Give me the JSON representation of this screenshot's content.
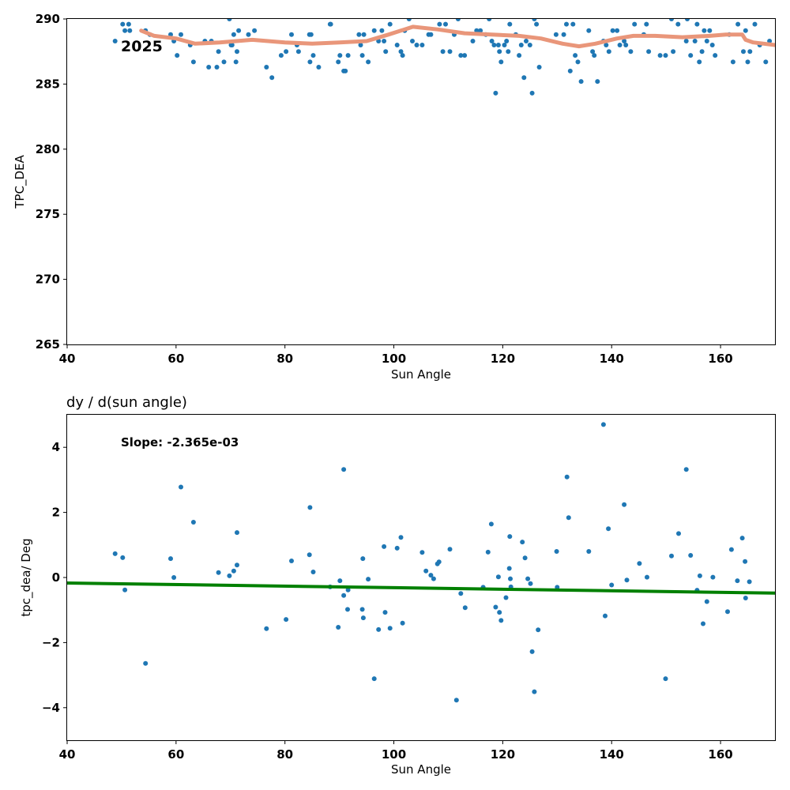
{
  "colors": {
    "points": "#1f77b4",
    "trend_line": "#e9967a",
    "fit_line": "#008000",
    "axes": "#000000"
  },
  "chart_data": [
    {
      "type": "scatter",
      "title": "",
      "annotation": "2025",
      "xlabel": "Sun Angle",
      "ylabel": "TPC_DEA",
      "xlim": [
        40,
        170
      ],
      "ylim": [
        265,
        290
      ],
      "xticks": [
        40,
        60,
        80,
        100,
        120,
        140,
        160
      ],
      "yticks": [
        265,
        270,
        275,
        280,
        285,
        290
      ],
      "grid": false,
      "series": [
        {
          "kind": "points",
          "x": [
            48.8,
            50.2,
            50.6,
            51.3,
            51.5,
            54.4,
            55.2,
            59.0,
            59.6,
            60.2,
            60.9,
            62.6,
            63.2,
            65.3,
            66.0,
            66.5,
            67.5,
            67.8,
            68.8,
            69.8,
            70.1,
            70.3,
            70.6,
            71.0,
            71.2,
            71.5,
            73.3,
            74.4,
            76.6,
            77.6,
            79.3,
            80.2,
            81.2,
            82.2,
            82.5,
            84.5,
            84.6,
            84.8,
            85.2,
            86.2,
            88.3,
            88.4,
            89.8,
            90.1,
            90.8,
            91.1,
            91.6,
            93.6,
            93.9,
            94.2,
            94.5,
            95.3,
            96.4,
            97.2,
            97.8,
            98.2,
            98.5,
            99.3,
            100.6,
            101.3,
            101.6,
            102.0,
            102.8,
            103.4,
            104.2,
            105.2,
            106.4,
            106.8,
            108.4,
            109.0,
            109.5,
            110.3,
            111.1,
            111.8,
            112.3,
            113.0,
            114.5,
            115.2,
            115.9,
            116.9,
            117.5,
            118.0,
            118.4,
            118.7,
            119.2,
            119.4,
            119.7,
            120.3,
            120.7,
            121.0,
            121.3,
            122.4,
            123.0,
            123.4,
            123.9,
            124.3,
            125.0,
            125.4,
            125.8,
            126.2,
            126.7,
            129.8,
            131.2,
            131.7,
            132.4,
            132.9,
            133.3,
            133.8,
            134.4,
            135.8,
            136.5,
            136.8,
            137.4,
            138.5,
            139.0,
            139.5,
            140.2,
            141.0,
            141.5,
            142.3,
            142.6,
            143.5,
            144.2,
            145.9,
            146.4,
            146.8,
            148.9,
            149.9,
            151.0,
            151.3,
            152.2,
            153.7,
            153.9,
            154.5,
            155.3,
            155.7,
            156.1,
            156.6,
            157.0,
            157.5,
            158.0,
            158.5,
            159.0,
            161.6,
            162.3,
            163.2,
            164.2,
            164.6,
            165.0,
            165.4,
            166.3,
            167.2,
            168.3,
            169.0
          ],
          "y": [
            288.3,
            289.6,
            289.1,
            289.6,
            289.1,
            289.1,
            288.8,
            288.8,
            288.3,
            287.2,
            288.8,
            288.0,
            286.7,
            288.3,
            286.3,
            288.3,
            286.3,
            287.5,
            286.7,
            290.0,
            288.0,
            288.0,
            288.8,
            286.7,
            287.5,
            289.1,
            288.8,
            289.1,
            286.3,
            285.5,
            287.2,
            287.5,
            288.8,
            288.0,
            287.5,
            288.8,
            286.7,
            288.8,
            287.2,
            286.3,
            289.6,
            289.6,
            286.7,
            287.2,
            286.0,
            286.0,
            287.2,
            288.8,
            288.0,
            287.2,
            288.8,
            286.7,
            289.1,
            288.3,
            289.1,
            288.3,
            287.5,
            289.6,
            288.0,
            287.5,
            287.2,
            289.1,
            290.0,
            288.3,
            288.0,
            288.0,
            288.8,
            288.8,
            289.6,
            287.5,
            289.6,
            287.5,
            288.8,
            290.0,
            287.2,
            287.2,
            288.3,
            289.1,
            289.1,
            288.8,
            290.0,
            288.3,
            288.0,
            284.3,
            288.0,
            287.5,
            286.7,
            288.0,
            288.3,
            287.5,
            289.6,
            288.8,
            287.2,
            288.0,
            285.5,
            288.3,
            288.0,
            284.3,
            290.0,
            289.6,
            286.3,
            288.8,
            288.8,
            289.6,
            286.0,
            289.6,
            287.2,
            286.7,
            285.2,
            289.1,
            287.5,
            287.2,
            285.2,
            288.3,
            288.0,
            287.5,
            289.1,
            289.1,
            288.0,
            288.3,
            288.0,
            287.5,
            289.6,
            288.8,
            289.6,
            287.5,
            287.2,
            287.2,
            290.0,
            287.5,
            289.6,
            288.3,
            290.0,
            287.2,
            288.3,
            289.6,
            286.7,
            287.5,
            289.1,
            288.3,
            289.1,
            288.0,
            287.2,
            288.8,
            286.7,
            289.6,
            287.5,
            289.1,
            286.7,
            287.5,
            289.6,
            288.0,
            286.7,
            288.3
          ]
        },
        {
          "kind": "line",
          "x": [
            53.6,
            56.0,
            60.0,
            63.5,
            68.0,
            74.0,
            80.0,
            85.0,
            90.0,
            95.0,
            99.0,
            103.5,
            108.0,
            113.0,
            118.0,
            123.0,
            127.0,
            131.0,
            134.0,
            137.0,
            141.0,
            144.0,
            148.0,
            153.0,
            158.0,
            161.0,
            164.0,
            164.6,
            166.0,
            170.0
          ],
          "y": [
            289.1,
            288.7,
            288.5,
            288.1,
            288.2,
            288.4,
            288.2,
            288.1,
            288.2,
            288.3,
            288.8,
            289.4,
            289.2,
            288.9,
            288.8,
            288.7,
            288.5,
            288.1,
            287.9,
            288.1,
            288.5,
            288.7,
            288.7,
            288.6,
            288.7,
            288.8,
            288.8,
            288.4,
            288.2,
            288.0
          ]
        }
      ]
    },
    {
      "type": "scatter",
      "title": "dy / d(sun angle)",
      "annotation": "Slope: -2.365e-03",
      "xlabel": "Sun Angle",
      "ylabel": "tpc_dea/ Deg",
      "xlim": [
        40,
        170
      ],
      "ylim": [
        -5,
        5
      ],
      "xticks": [
        40,
        60,
        80,
        100,
        120,
        140,
        160
      ],
      "yticks": [
        -4,
        -2,
        0,
        2,
        4
      ],
      "ytick_labels": [
        "−4",
        "−2",
        "0",
        "2",
        "4"
      ],
      "grid": false,
      "series": [
        {
          "kind": "points",
          "x": [
            48.8,
            50.2,
            50.6,
            54.4,
            59.0,
            59.6,
            60.9,
            63.2,
            67.8,
            69.8,
            70.6,
            71.2,
            71.2,
            76.6,
            80.2,
            81.2,
            84.5,
            84.6,
            85.2,
            88.3,
            89.8,
            90.1,
            90.8,
            90.8,
            91.5,
            91.6,
            94.2,
            94.3,
            94.4,
            95.3,
            96.4,
            97.2,
            98.2,
            98.4,
            99.3,
            100.6,
            101.3,
            101.6,
            105.2,
            105.9,
            106.8,
            107.3,
            108.0,
            108.3,
            110.3,
            111.5,
            112.3,
            113.1,
            116.4,
            117.3,
            117.9,
            118.7,
            119.2,
            119.4,
            119.7,
            120.6,
            121.2,
            121.3,
            121.4,
            121.5,
            123.6,
            124.1,
            124.6,
            125.1,
            125.4,
            125.8,
            126.5,
            129.9,
            130.0,
            131.8,
            132.1,
            135.8,
            138.5,
            138.8,
            139.4,
            140.0,
            142.3,
            142.8,
            145.1,
            146.5,
            149.9,
            151.0,
            152.3,
            153.7,
            154.5,
            155.7,
            156.2,
            156.8,
            157.5,
            158.6,
            161.3,
            162.0,
            163.1,
            164.0,
            164.5,
            164.6,
            165.3
          ],
          "y": [
            0.73,
            0.61,
            -0.38,
            -2.64,
            0.58,
            0.0,
            2.78,
            1.7,
            0.15,
            0.05,
            0.2,
            1.38,
            0.38,
            -1.57,
            -1.29,
            0.51,
            0.7,
            2.15,
            0.17,
            -0.29,
            -1.53,
            -0.1,
            3.32,
            -0.55,
            -0.98,
            -0.38,
            -0.98,
            0.58,
            -1.24,
            -0.05,
            -3.11,
            -1.6,
            0.95,
            -1.07,
            -1.56,
            0.9,
            1.23,
            -1.4,
            0.77,
            0.2,
            0.07,
            -0.04,
            0.42,
            0.48,
            0.87,
            -3.77,
            -0.49,
            -0.93,
            -0.3,
            0.78,
            1.64,
            -0.91,
            0.02,
            -1.07,
            -1.32,
            -0.62,
            0.28,
            1.26,
            -0.04,
            -0.29,
            1.09,
            0.6,
            -0.04,
            -0.19,
            -2.28,
            -3.51,
            -1.61,
            0.8,
            -0.3,
            3.09,
            1.84,
            0.8,
            4.7,
            -1.18,
            1.5,
            -0.23,
            2.24,
            -0.08,
            0.43,
            0.01,
            -3.11,
            0.66,
            1.35,
            3.32,
            0.68,
            -0.39,
            0.05,
            -1.42,
            -0.74,
            0.01,
            -1.05,
            0.86,
            -0.1,
            1.21,
            0.49,
            -0.63,
            -0.13
          ]
        },
        {
          "kind": "fit",
          "x": [
            40,
            170
          ],
          "y": [
            -0.17,
            -0.48
          ]
        }
      ]
    }
  ]
}
